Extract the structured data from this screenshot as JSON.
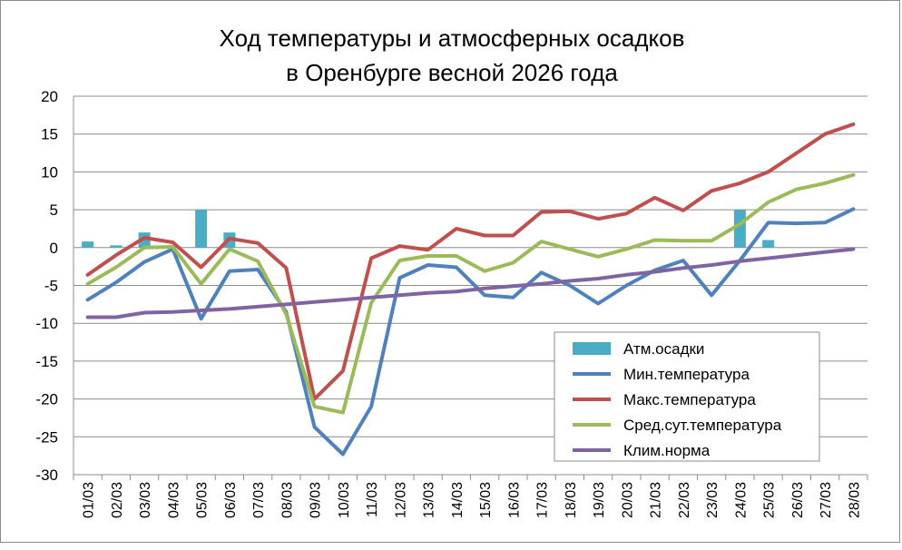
{
  "chart_data": {
    "type": "line",
    "title_line1": "Ход температуры и атмосферных осадков",
    "title_line2": "в Оренбурге весной 2026 года",
    "ylim": [
      -30,
      20
    ],
    "yticks": [
      20,
      15,
      10,
      5,
      0,
      -5,
      -10,
      -15,
      -20,
      -25,
      -30
    ],
    "grid": true,
    "legend_position": "bottom-right",
    "categories": [
      "01/03",
      "02/03",
      "03/03",
      "04/03",
      "05/03",
      "06/03",
      "07/03",
      "08/03",
      "09/03",
      "10/03",
      "11/03",
      "12/03",
      "13/03",
      "14/03",
      "15/03",
      "16/03",
      "17/03",
      "18/03",
      "19/03",
      "20/03",
      "21/03",
      "22/03",
      "23/03",
      "24/03",
      "25/03",
      "26/03",
      "27/03",
      "28/03"
    ],
    "bar_series": {
      "name": "Атм.осадки",
      "color": "#4bacc6",
      "values": [
        0.8,
        0.3,
        2.0,
        0,
        5.0,
        2.0,
        0,
        0,
        0,
        0,
        0,
        0,
        0,
        0,
        0,
        0,
        0,
        0,
        0,
        0,
        0,
        0,
        0,
        5.0,
        1.0,
        0,
        0,
        0
      ]
    },
    "series": [
      {
        "name": "Мин.температура",
        "color": "#4f81bd",
        "values": [
          -6.9,
          -4.6,
          -1.9,
          -0.2,
          -9.4,
          -3.1,
          -2.9,
          -8.5,
          -23.7,
          -27.3,
          -21.0,
          -4.0,
          -2.3,
          -2.6,
          -6.3,
          -6.6,
          -3.3,
          -5.0,
          -7.4,
          -5.0,
          -3.0,
          -1.7,
          -6.3,
          -1.7,
          3.3,
          3.2,
          3.3,
          5.1
        ]
      },
      {
        "name": "Макс.температура",
        "color": "#c0504d",
        "values": [
          -3.6,
          -1.0,
          1.3,
          0.7,
          -2.6,
          1.2,
          0.6,
          -2.7,
          -20.0,
          -16.3,
          -1.4,
          0.2,
          -0.3,
          2.5,
          1.6,
          1.6,
          4.7,
          4.8,
          3.8,
          4.5,
          6.6,
          4.9,
          7.5,
          8.5,
          10.0,
          12.5,
          15.0,
          16.3
        ]
      },
      {
        "name": "Сред.сут.температура",
        "color": "#9bbb59",
        "values": [
          -4.8,
          -2.6,
          0.0,
          0.1,
          -4.8,
          -0.2,
          -1.8,
          -8.8,
          -21.0,
          -21.8,
          -7.3,
          -1.7,
          -1.1,
          -1.1,
          -3.1,
          -2.0,
          0.8,
          -0.2,
          -1.2,
          -0.2,
          1.0,
          0.9,
          0.9,
          3.1,
          6.0,
          7.7,
          8.5,
          9.6
        ]
      },
      {
        "name": "Клим.норма",
        "color": "#8064a2",
        "values": [
          -9.2,
          -9.2,
          -8.6,
          -8.5,
          -8.3,
          -8.1,
          -7.8,
          -7.5,
          -7.2,
          -6.9,
          -6.6,
          -6.3,
          -6.0,
          -5.8,
          -5.4,
          -5.1,
          -4.8,
          -4.4,
          -4.1,
          -3.6,
          -3.2,
          -2.7,
          -2.3,
          -1.8,
          -1.4,
          -1.0,
          -0.6,
          -0.2
        ]
      }
    ]
  }
}
